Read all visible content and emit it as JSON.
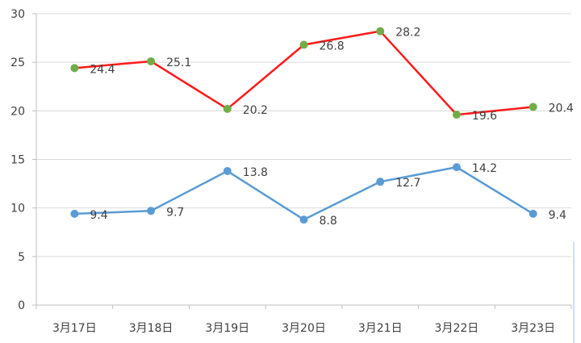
{
  "chart_data": {
    "type": "line",
    "categories": [
      "3月17日",
      "3月18日",
      "3月19日",
      "3月20日",
      "3月21日",
      "3月22日",
      "3月23日"
    ],
    "series": [
      {
        "values": [
          24.4,
          25.1,
          20.2,
          26.8,
          28.2,
          19.6,
          20.4
        ],
        "line_color": "#ff1a1a",
        "marker_color": "#70ad47"
      },
      {
        "values": [
          9.4,
          9.7,
          13.8,
          8.8,
          12.7,
          14.2,
          9.4
        ],
        "line_color": "#5b9bd5",
        "marker_color": "#5b9bd5"
      }
    ],
    "ylim": [
      0,
      30
    ],
    "yticks": [
      0,
      5,
      10,
      15,
      20,
      25,
      30
    ],
    "grid": true,
    "legend": "none",
    "axis_color": "#bfbfbf",
    "grid_color": "#d9d9d9",
    "text_color": "#404040"
  }
}
